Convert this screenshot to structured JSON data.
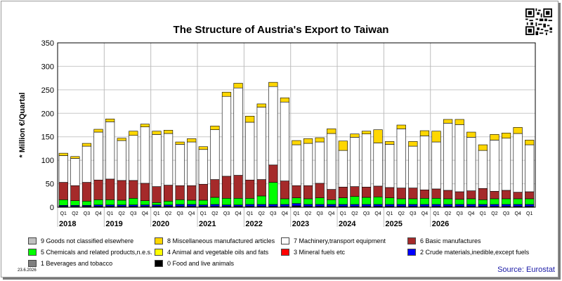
{
  "chart_data": {
    "type": "bar",
    "title": "The Structure of Austria's Export to Taiwan",
    "ylabel": "* Million €/Quartal",
    "ylim": [
      0,
      350
    ],
    "yticks": [
      0,
      50,
      100,
      150,
      200,
      250,
      300,
      350
    ],
    "grid": true,
    "legend_position": "bottom",
    "quarter_labels": [
      "Q1",
      "Q2",
      "Q3",
      "Q4",
      "Q1",
      "Q2",
      "Q3",
      "Q4",
      "Q1",
      "Q2",
      "Q3",
      "Q4",
      "Q1",
      "Q2",
      "Q3",
      "Q4",
      "Q1",
      "Q2",
      "Q3",
      "Q4",
      "Q1",
      "Q2",
      "Q3",
      "Q4",
      "Q1",
      "Q2",
      "Q3",
      "Q4",
      "Q1",
      "Q2",
      "Q3",
      "Q4",
      "Q1",
      "Q2",
      "Q3",
      "Q4",
      "Q1",
      "Q2",
      "Q3",
      "Q4",
      "Q1"
    ],
    "years": [
      {
        "label": "2018",
        "start": 0
      },
      {
        "label": "2019",
        "start": 4
      },
      {
        "label": "2020",
        "start": 8
      },
      {
        "label": "2021",
        "start": 12
      },
      {
        "label": "2022",
        "start": 16
      },
      {
        "label": "2023",
        "start": 20
      },
      {
        "label": "2024",
        "start": 24
      },
      {
        "label": "2025",
        "start": 28
      },
      {
        "label": "2026",
        "start": 32
      }
    ],
    "series": [
      {
        "name": "0 Food and live animals",
        "color": "#000000",
        "values": [
          2,
          2,
          2,
          2,
          2,
          2,
          2,
          2,
          2,
          2,
          2,
          2,
          2,
          2,
          2,
          2,
          2,
          2,
          2,
          2,
          3,
          2,
          2,
          2,
          2,
          2,
          2,
          2,
          2,
          2,
          2,
          2,
          2,
          2,
          2,
          2,
          2,
          2,
          2,
          2,
          2
        ]
      },
      {
        "name": "1 Beverages and tobacco",
        "color": "#808080",
        "values": [
          0,
          0,
          0,
          0,
          0,
          0,
          0,
          0,
          0,
          0,
          0,
          0,
          0,
          0,
          0,
          0,
          0,
          0,
          0,
          0,
          0,
          0,
          0,
          0,
          0,
          0,
          0,
          0,
          0,
          0,
          0,
          0,
          0,
          0,
          0,
          0,
          0,
          0,
          0,
          0,
          0
        ]
      },
      {
        "name": "2 Crude materials,inedible,except fuels",
        "color": "#0000ff",
        "values": [
          2,
          2,
          2,
          3,
          3,
          3,
          3,
          3,
          3,
          3,
          4,
          4,
          3,
          4,
          3,
          3,
          4,
          4,
          4,
          4,
          5,
          4,
          4,
          4,
          4,
          4,
          4,
          4,
          4,
          4,
          4,
          4,
          4,
          4,
          4,
          4,
          4,
          4,
          4,
          4,
          4
        ]
      },
      {
        "name": "3 Mineral fuels etc",
        "color": "#ff0000",
        "values": [
          0,
          0,
          0,
          0,
          0,
          0,
          0,
          0,
          0,
          0,
          0,
          0,
          0,
          0,
          0,
          0,
          0,
          0,
          0,
          0,
          0,
          0,
          0,
          0,
          0,
          0,
          0,
          0,
          0,
          0,
          0,
          0,
          0,
          0,
          0,
          0,
          0,
          0,
          0,
          0,
          0
        ]
      },
      {
        "name": "4 Animal and vegetable oils and fats",
        "color": "#ffff00",
        "values": [
          0,
          0,
          0,
          0,
          0,
          0,
          0,
          0,
          0,
          0,
          0,
          0,
          0,
          0,
          0,
          0,
          0,
          0,
          0,
          0,
          0,
          0,
          0,
          0,
          0,
          0,
          0,
          0,
          0,
          0,
          0,
          0,
          0,
          0,
          0,
          0,
          0,
          0,
          0,
          0,
          0
        ]
      },
      {
        "name": "5 Chemicals and related products,n.e.s.",
        "color": "#00ff00",
        "values": [
          12,
          10,
          9,
          11,
          11,
          10,
          14,
          9,
          5,
          8,
          10,
          9,
          10,
          15,
          14,
          14,
          13,
          18,
          47,
          12,
          12,
          12,
          14,
          10,
          14,
          17,
          15,
          16,
          14,
          12,
          12,
          13,
          13,
          12,
          11,
          12,
          10,
          12,
          12,
          12,
          12
        ]
      },
      {
        "name": "6 Basic manufactures",
        "color": "#a52a2a",
        "values": [
          37,
          32,
          40,
          42,
          44,
          42,
          38,
          37,
          34,
          34,
          30,
          31,
          34,
          38,
          47,
          49,
          39,
          35,
          37,
          38,
          26,
          28,
          31,
          22,
          23,
          21,
          22,
          23,
          22,
          23,
          23,
          18,
          20,
          18,
          16,
          17,
          24,
          16,
          18,
          14,
          15
        ]
      },
      {
        "name": "7 Machinery,transport equipment",
        "color": "#ffffff",
        "values": [
          57,
          58,
          77,
          102,
          122,
          85,
          96,
          120,
          111,
          110,
          88,
          93,
          74,
          106,
          170,
          186,
          123,
          154,
          167,
          168,
          87,
          90,
          88,
          119,
          78,
          105,
          113,
          92,
          92,
          126,
          89,
          115,
          100,
          143,
          143,
          114,
          81,
          109,
          111,
          125,
          100
        ]
      },
      {
        "name": "8 Miscellaneous manufactured articles",
        "color": "#ffd700",
        "values": [
          5,
          4,
          6,
          6,
          6,
          5,
          9,
          6,
          7,
          7,
          5,
          7,
          6,
          8,
          9,
          10,
          13,
          7,
          9,
          9,
          9,
          10,
          9,
          10,
          20,
          7,
          6,
          28,
          6,
          8,
          10,
          11,
          23,
          8,
          11,
          11,
          12,
          12,
          11,
          13,
          10
        ]
      },
      {
        "name": "9 Goods not classified elsewhere",
        "color": "#c0c0c0",
        "values": [
          0,
          0,
          0,
          0,
          0,
          0,
          0,
          0,
          0,
          0,
          0,
          0,
          0,
          0,
          0,
          0,
          0,
          0,
          0,
          0,
          0,
          0,
          0,
          0,
          0,
          0,
          0,
          0,
          0,
          0,
          0,
          0,
          0,
          0,
          0,
          0,
          0,
          0,
          0,
          0,
          0
        ]
      }
    ]
  },
  "legend": [
    {
      "label": "9 Goods not classified elsewhere",
      "color": "#c0c0c0"
    },
    {
      "label": "8 Miscellaneous manufactured articles",
      "color": "#ffd700"
    },
    {
      "label": "7 Machinery,transport equipment",
      "color": "#ffffff"
    },
    {
      "label": "6 Basic manufactures",
      "color": "#a52a2a"
    },
    {
      "label": "5 Chemicals and related products,n.e.s.",
      "color": "#00ff00"
    },
    {
      "label": "4 Animal and vegetable oils and fats",
      "color": "#ffff00"
    },
    {
      "label": "3 Mineral fuels etc",
      "color": "#ff0000"
    },
    {
      "label": "2 Crude materials,inedible,except fuels",
      "color": "#0000ff"
    },
    {
      "label": "1 Beverages and tobacco",
      "color": "#808080"
    },
    {
      "label": "0 Food and live animals",
      "color": "#000000"
    }
  ],
  "footer": {
    "source": "Source: Eurostat",
    "date": "23.6.2026"
  }
}
